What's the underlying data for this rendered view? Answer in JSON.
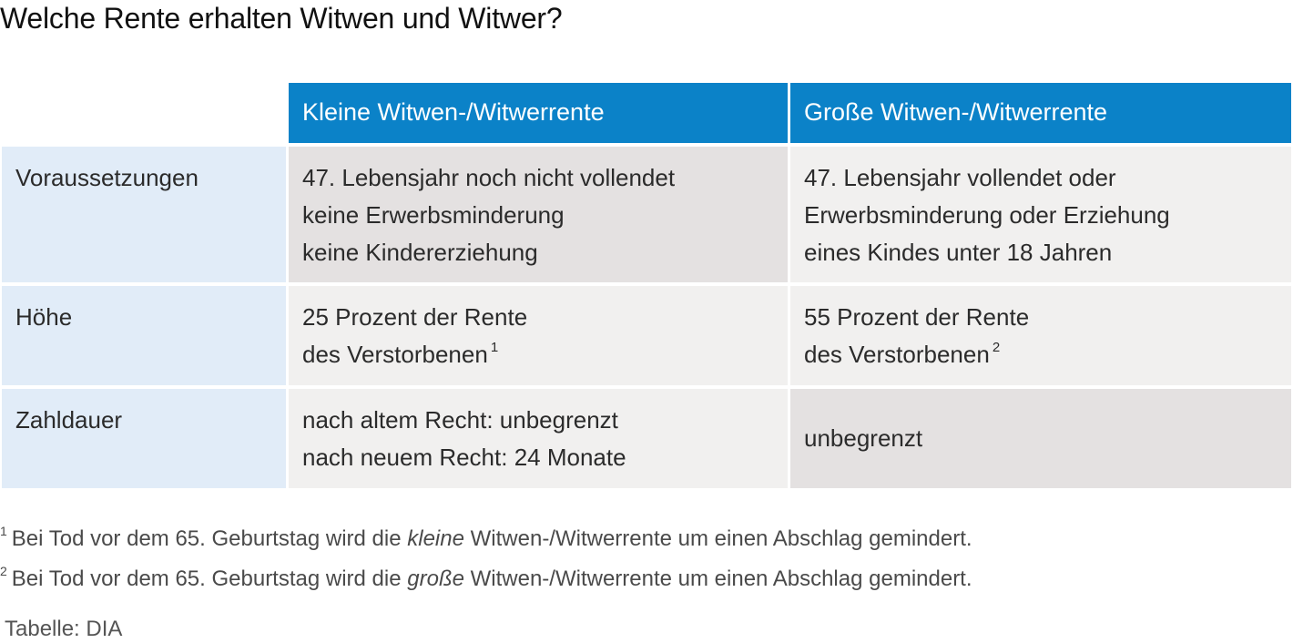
{
  "title": "Welche Rente erhalten Witwen und Witwer?",
  "table": {
    "columns": [
      "Kleine Witwen-/Witwerrente",
      "Große Witwen-/Witwerrente"
    ],
    "rows": [
      {
        "label": "Voraussetzungen",
        "kleine": [
          "47. Lebensjahr noch nicht vollendet",
          "keine Erwerbsminderung",
          "keine Kindererziehung"
        ],
        "grosse": [
          "47. Lebensjahr vollendet oder",
          "Erwerbsminderung oder Erziehung",
          "eines Kindes unter 18 Jahren"
        ]
      },
      {
        "label": "Höhe",
        "kleine": [
          "25 Prozent der Rente",
          "des Verstorbenen"
        ],
        "kleine_footnote": "1",
        "grosse": [
          "55 Prozent der Rente",
          "des Verstorbenen"
        ],
        "grosse_footnote": "2"
      },
      {
        "label": "Zahldauer",
        "kleine": [
          "nach altem Recht: unbegrenzt",
          "nach neuem Recht: 24 Monate"
        ],
        "grosse": [
          "unbegrenzt"
        ]
      }
    ]
  },
  "footnotes": [
    {
      "marker": "1",
      "before": "Bei Tod vor dem 65. Geburtstag wird die ",
      "emphasis": "kleine",
      "after": " Witwen-/Witwerrente um einen Abschlag gemindert."
    },
    {
      "marker": "2",
      "before": "Bei Tod vor dem 65. Geburtstag wird die ",
      "emphasis": "große",
      "after": " Witwen-/Witwerrente um einen Abschlag gemindert."
    }
  ],
  "source": "Tabelle: DIA",
  "colors": {
    "header_bg": "#0b82c8",
    "header_text": "#ffffff",
    "row_label_bg": "#e1ecf8",
    "cell_dark_bg": "#e4e1e1",
    "cell_light_bg": "#f1f0ef"
  }
}
